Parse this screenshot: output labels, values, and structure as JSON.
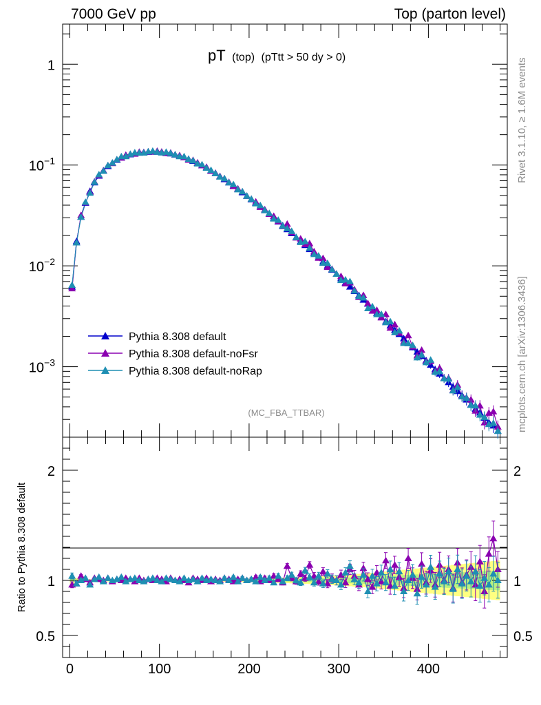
{
  "header": {
    "left": "7000 GeV pp",
    "right": "Top (parton level)"
  },
  "title": {
    "main": "pT",
    "sub1": "(top)",
    "sub2": "(pTtt > 50 dy > 0)"
  },
  "side_text": {
    "rivet": "Rivet 3.1.10, ≥ 1.6M events",
    "mcplots": "mcplots.cern.ch [arXiv:1306.3436]"
  },
  "analysis_tag": "(MC_FBA_TTBAR)",
  "ratio_ylabel": "Ratio to Pythia 8.308 default",
  "colors": {
    "default": "#0000cc",
    "noFsr": "#8a00b0",
    "noRap": "#1f8fb3",
    "band_outer": "#ffff80",
    "band_inner": "#b8f080"
  },
  "chart_data": [
    {
      "type": "line",
      "name": "main",
      "yscale": "log",
      "ylim": [
        0.0002,
        2.5
      ],
      "xlim": [
        -8,
        488
      ],
      "yticks": [
        {
          "value": 1,
          "base": "1",
          "exp": ""
        },
        {
          "value": 0.1,
          "base": "10",
          "exp": "−1"
        },
        {
          "value": 0.01,
          "base": "10",
          "exp": "−2"
        },
        {
          "value": 0.001,
          "base": "10",
          "exp": "−3"
        }
      ],
      "series": [
        {
          "name": "Pythia 8.308 default",
          "color": "#0000cc"
        },
        {
          "name": "Pythia 8.308 default-noFsr",
          "color": "#8a00b0"
        },
        {
          "name": "Pythia 8.308 default-noRap",
          "color": "#1f8fb3"
        }
      ],
      "x": [
        2.5,
        7.5,
        12.5,
        17.5,
        22.5,
        27.5,
        32.5,
        37.5,
        42.5,
        47.5,
        52.5,
        57.5,
        62.5,
        67.5,
        72.5,
        77.5,
        82.5,
        87.5,
        92.5,
        97.5,
        102.5,
        107.5,
        112.5,
        117.5,
        122.5,
        127.5,
        132.5,
        137.5,
        142.5,
        147.5,
        152.5,
        157.5,
        162.5,
        167.5,
        172.5,
        177.5,
        182.5,
        187.5,
        192.5,
        197.5,
        202.5,
        207.5,
        212.5,
        217.5,
        222.5,
        227.5,
        232.5,
        237.5,
        242.5,
        247.5,
        252.5,
        257.5,
        262.5,
        267.5,
        272.5,
        277.5,
        282.5,
        287.5,
        292.5,
        297.5,
        302.5,
        307.5,
        312.5,
        317.5,
        322.5,
        327.5,
        332.5,
        337.5,
        342.5,
        347.5,
        352.5,
        357.5,
        362.5,
        367.5,
        372.5,
        377.5,
        382.5,
        387.5,
        392.5,
        397.5,
        402.5,
        407.5,
        412.5,
        417.5,
        422.5,
        427.5,
        432.5,
        437.5,
        442.5,
        447.5,
        452.5,
        457.5,
        462.5,
        467.5,
        472.5,
        477.5
      ],
      "default": [
        0.0062,
        0.0175,
        0.0305,
        0.042,
        0.055,
        0.067,
        0.078,
        0.088,
        0.097,
        0.105,
        0.112,
        0.118,
        0.123,
        0.127,
        0.13,
        0.132,
        0.1335,
        0.1345,
        0.135,
        0.1348,
        0.1338,
        0.132,
        0.1295,
        0.1265,
        0.123,
        0.119,
        0.1145,
        0.1095,
        0.1043,
        0.099,
        0.0935,
        0.088,
        0.0825,
        0.0772,
        0.072,
        0.067,
        0.0622,
        0.0577,
        0.0534,
        0.0493,
        0.0455,
        0.0419,
        0.0386,
        0.0355,
        0.0326,
        0.0299,
        0.0274,
        0.0251,
        0.023,
        0.021,
        0.0192,
        0.0175,
        0.016,
        0.0146,
        0.0133,
        0.0121,
        0.011,
        0.01,
        0.0091,
        0.0083,
        0.0075,
        0.0068,
        0.0062,
        0.0056,
        0.0051,
        0.0046,
        0.0042,
        0.0038,
        0.0034,
        0.0031,
        0.0028,
        0.00255,
        0.0023,
        0.0021,
        0.0019,
        0.0017,
        0.00155,
        0.0014,
        0.00127,
        0.00115,
        0.00104,
        0.00094,
        0.00085,
        0.00077,
        0.0007,
        0.00063,
        0.00057,
        0.00052,
        0.00047,
        0.00042,
        0.00038,
        0.00035,
        0.00031,
        0.00028,
        0.00026,
        0.00023
      ]
    },
    {
      "type": "line",
      "name": "ratio",
      "ylim": [
        0.3,
        2.3
      ],
      "yticks": [
        {
          "value": 0.5,
          "label": "0.5"
        },
        {
          "value": 1,
          "label": "1"
        },
        {
          "value": 2,
          "label": "2"
        }
      ],
      "xticks": [
        0,
        100,
        200,
        300,
        400
      ],
      "ratio_noFsr": [
        0.96,
        0.97,
        1.04,
        1.01,
        0.98,
        1.02,
        1.01,
        1.0,
        1.02,
        0.99,
        1.01,
        1.0,
        1.02,
        1.01,
        0.99,
        1.02,
        1.0,
        1.01,
        1.0,
        1.02,
        1.01,
        0.99,
        1.02,
        1.0,
        1.01,
        1.0,
        0.98,
        1.02,
        1.01,
        1.0,
        1.02,
        0.99,
        1.01,
        1.0,
        1.02,
        1.01,
        0.99,
        1.01,
        1.02,
        1.0,
        1.01,
        1.03,
        0.99,
        1.02,
        1.0,
        1.04,
        1.01,
        0.98,
        1.13,
        1.02,
        0.99,
        1.06,
        1.02,
        1.14,
        1.04,
        0.99,
        1.08,
        0.97,
        1.02,
        1.0,
        1.05,
        0.98,
        1.1,
        1.04,
        0.96,
        1.11,
        1.01,
        0.94,
        1.07,
        0.99,
        1.18,
        0.95,
        1.14,
        1.03,
        0.93,
        1.2,
        1.02,
        0.92,
        1.15,
        0.98,
        1.09,
        0.96,
        1.14,
        1.0,
        1.1,
        0.93,
        1.16,
        0.98,
        1.05,
        1.12,
        0.96,
        1.17,
        0.9,
        1.24,
        1.38,
        1.1
      ],
      "ratio_noRap": [
        1.04,
        0.97,
        1.0,
        1.02,
        0.96,
        1.01,
        1.03,
        0.99,
        1.02,
        1.0,
        1.01,
        1.03,
        0.99,
        1.01,
        1.02,
        1.0,
        0.99,
        1.01,
        1.02,
        1.0,
        0.99,
        1.02,
        1.01,
        1.0,
        0.99,
        1.02,
        1.0,
        1.01,
        0.99,
        1.02,
        1.0,
        1.01,
        1.0,
        0.99,
        1.02,
        1.0,
        1.03,
        0.99,
        1.02,
        1.0,
        1.01,
        0.99,
        1.03,
        1.0,
        1.02,
        0.98,
        1.04,
        0.99,
        1.02,
        1.05,
        1.0,
        0.98,
        1.09,
        1.03,
        0.98,
        1.04,
        0.97,
        1.06,
        1.01,
        1.0,
        0.96,
        1.07,
        1.13,
        1.01,
        0.98,
        1.05,
        0.9,
        1.04,
        0.97,
        1.07,
        0.98,
        1.1,
        0.95,
        1.08,
        0.9,
        1.0,
        1.05,
        0.88,
        1.03,
        0.96,
        1.12,
        0.94,
        1.06,
        0.99,
        1.08,
        0.92,
        1.1,
        0.97,
        1.04,
        0.99,
        1.08,
        0.95,
        1.02,
        0.96,
        1.06,
        1.0
      ],
      "band_half_width": [
        0.03,
        0.02,
        0.015,
        0.012,
        0.01,
        0.01,
        0.01,
        0.01,
        0.01,
        0.01,
        0.01,
        0.01,
        0.01,
        0.01,
        0.01,
        0.01,
        0.01,
        0.01,
        0.01,
        0.01,
        0.01,
        0.01,
        0.01,
        0.01,
        0.01,
        0.01,
        0.01,
        0.01,
        0.01,
        0.01,
        0.012,
        0.012,
        0.012,
        0.013,
        0.013,
        0.014,
        0.014,
        0.015,
        0.015,
        0.016,
        0.017,
        0.018,
        0.019,
        0.02,
        0.021,
        0.022,
        0.023,
        0.024,
        0.025,
        0.027,
        0.028,
        0.03,
        0.031,
        0.033,
        0.035,
        0.037,
        0.039,
        0.041,
        0.043,
        0.046,
        0.048,
        0.05,
        0.053,
        0.056,
        0.059,
        0.062,
        0.065,
        0.068,
        0.072,
        0.076,
        0.08,
        0.084,
        0.088,
        0.092,
        0.097,
        0.1,
        0.104,
        0.108,
        0.112,
        0.116,
        0.12,
        0.124,
        0.128,
        0.132,
        0.136,
        0.14,
        0.144,
        0.148,
        0.152,
        0.156,
        0.16,
        0.164,
        0.168,
        0.172,
        0.176,
        0.18
      ]
    }
  ]
}
